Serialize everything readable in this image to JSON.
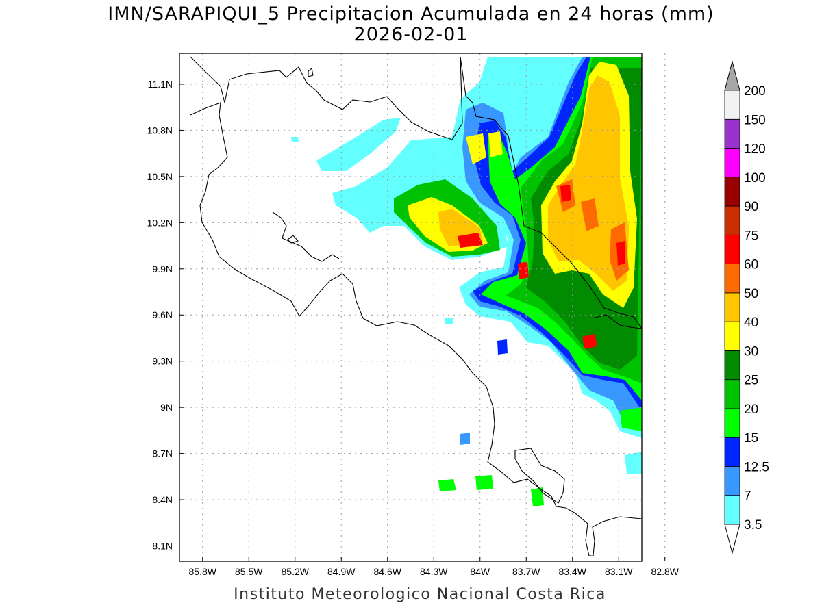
{
  "title": {
    "line1": "IMN/SARAPIQUI_5 Precipitacion Acumulada en 24 horas (mm)",
    "line2": "2026-02-01"
  },
  "map": {
    "model_run": "IMN/SARAPIQUI_5",
    "variable": "Precipitacion Acumulada en 24 horas",
    "units": "mm",
    "date": "2026-02-01",
    "lon_range": [
      -85.95,
      -82.95
    ],
    "lat_range": [
      8.0,
      11.3
    ],
    "lon_ticks": [
      {
        "value": -85.8,
        "label": "85.8W"
      },
      {
        "value": -85.5,
        "label": "85.5W"
      },
      {
        "value": -85.2,
        "label": "85.2W"
      },
      {
        "value": -84.9,
        "label": "84.9W"
      },
      {
        "value": -84.6,
        "label": "84.6W"
      },
      {
        "value": -84.3,
        "label": "84.3W"
      },
      {
        "value": -84.0,
        "label": "84W"
      },
      {
        "value": -83.7,
        "label": "83.7W"
      },
      {
        "value": -83.4,
        "label": "83.4W"
      },
      {
        "value": -83.1,
        "label": "83.1W"
      },
      {
        "value": -82.8,
        "label": "82.8W"
      }
    ],
    "lat_ticks": [
      {
        "value": 8.1,
        "label": "8.1N"
      },
      {
        "value": 8.4,
        "label": "8.4N"
      },
      {
        "value": 8.7,
        "label": "8.7N"
      },
      {
        "value": 9.0,
        "label": "9N"
      },
      {
        "value": 9.3,
        "label": "9.3N"
      },
      {
        "value": 9.6,
        "label": "9.6N"
      },
      {
        "value": 9.9,
        "label": "9.9N"
      },
      {
        "value": 10.2,
        "label": "10.2N"
      },
      {
        "value": 10.5,
        "label": "10.5N"
      },
      {
        "value": 10.8,
        "label": "10.8N"
      },
      {
        "value": 11.1,
        "label": "11.1N"
      }
    ],
    "grid": true,
    "precip_areas": [
      {
        "name": "northeast-caribbean-band",
        "level_mm": 3.5,
        "peak_mm": 75
      },
      {
        "name": "north-plains-band",
        "level_mm": 3.5,
        "peak_mm": 75
      },
      {
        "name": "south-pacific-cells",
        "level_mm": 3.5,
        "peak_mm": 20
      }
    ]
  },
  "colorbar": {
    "levels": [
      "3.5",
      "7",
      "12.5",
      "15",
      "20",
      "25",
      "30",
      "40",
      "50",
      "60",
      "75",
      "90",
      "100",
      "120",
      "150",
      "200"
    ],
    "colors": [
      "#63ffff",
      "#3898ff",
      "#0026ff",
      "#00ff00",
      "#00c200",
      "#008b00",
      "#ffff00",
      "#ffc500",
      "#ff6a00",
      "#ff0000",
      "#cc2e00",
      "#990000",
      "#ff00ff",
      "#9933cc",
      "#f2f2f2"
    ],
    "over_color": "#a6a6a6",
    "under_color": "#ffffff"
  },
  "footer": "Instituto Meteorologico Nacional Costa Rica"
}
